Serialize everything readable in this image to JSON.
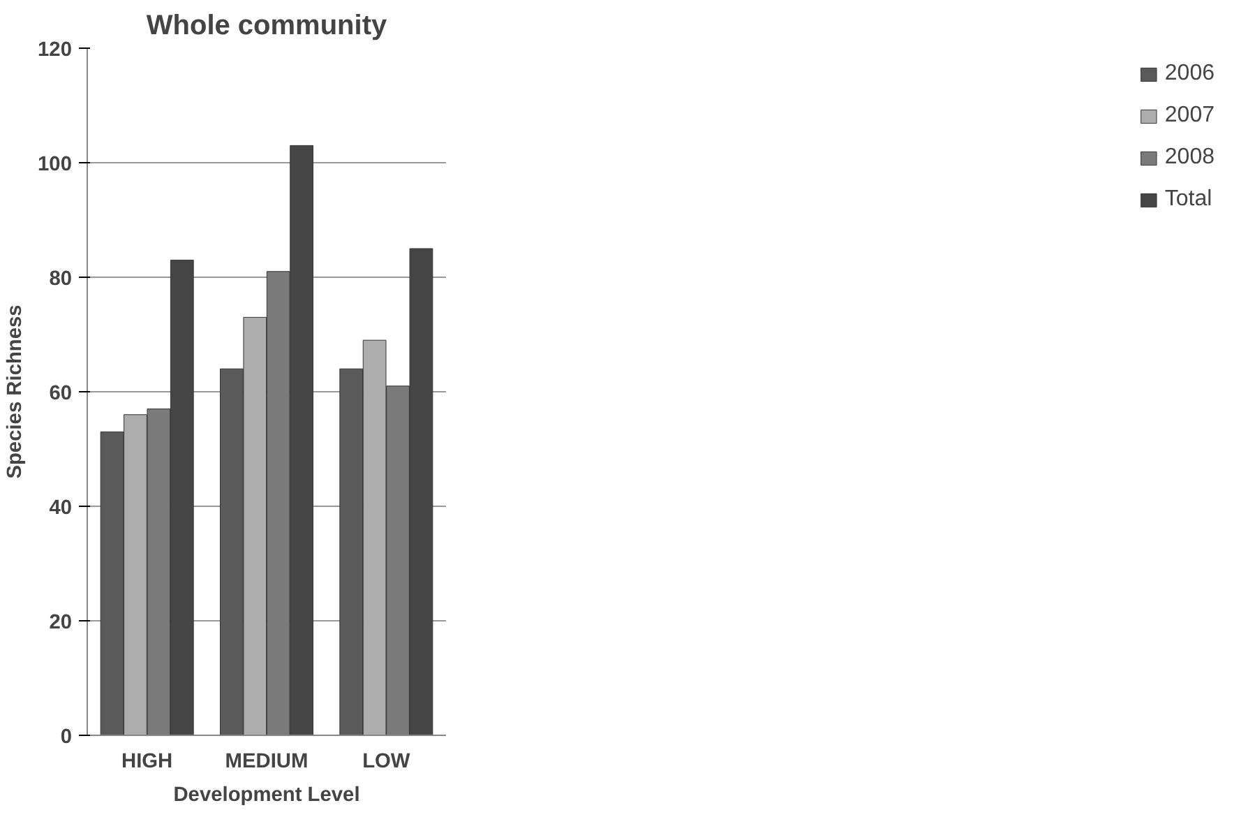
{
  "chart_data": {
    "type": "bar",
    "title": "Whole community",
    "xlabel": "Development Level",
    "ylabel": "Species Richness",
    "categories": [
      "HIGH",
      "MEDIUM",
      "LOW"
    ],
    "series": [
      {
        "name": "2006",
        "color": "#5a5a5a",
        "values": [
          53,
          64,
          64
        ]
      },
      {
        "name": "2007",
        "color": "#adadad",
        "values": [
          56,
          73,
          69
        ]
      },
      {
        "name": "2008",
        "color": "#7a7a7a",
        "values": [
          57,
          81,
          61
        ]
      },
      {
        "name": "Total",
        "color": "#454545",
        "values": [
          83,
          103,
          85
        ]
      }
    ],
    "ylim": [
      0,
      120
    ],
    "yticks": [
      0,
      20,
      40,
      60,
      80,
      100,
      120
    ],
    "grid": "y",
    "legend": "right"
  }
}
